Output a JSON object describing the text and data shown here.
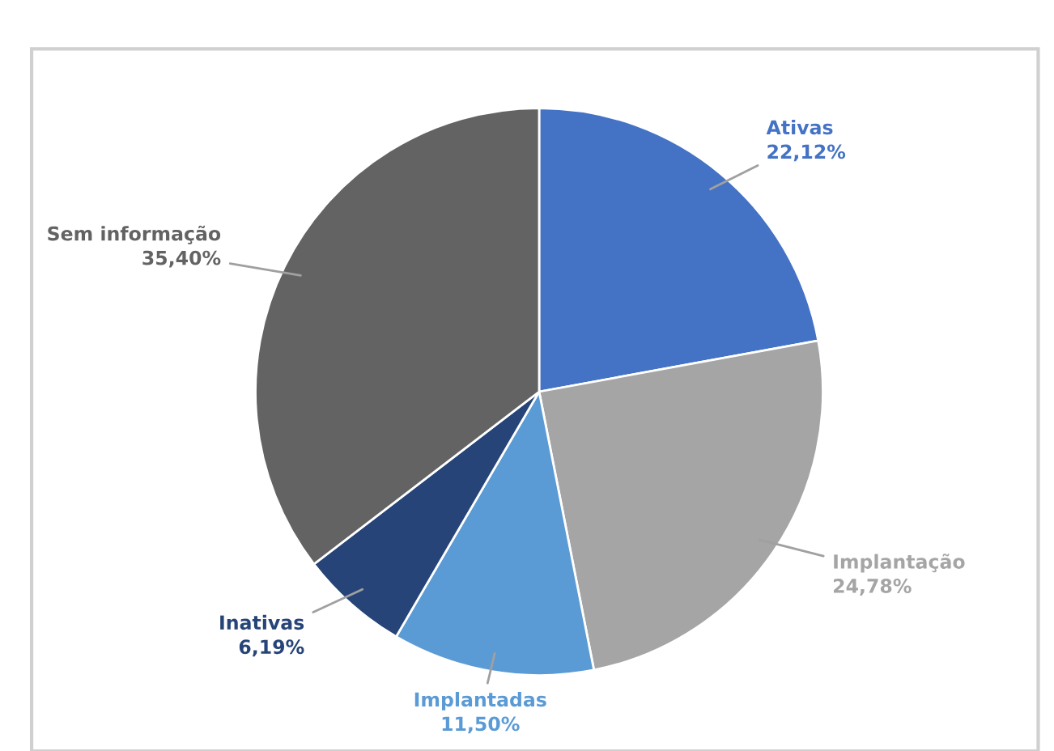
{
  "chart_data": {
    "type": "pie",
    "categories": [
      "Ativas",
      "Implantação",
      "Implantadas",
      "Inativas",
      "Sem informação"
    ],
    "values": [
      22.12,
      24.78,
      11.5,
      6.19,
      35.4
    ],
    "value_labels": [
      "22,12%",
      "24,78%",
      "11,50%",
      "6,19%",
      "35,40%"
    ],
    "colors": [
      "#4472c4",
      "#a5a5a5",
      "#5b9bd5",
      "#264478",
      "#636363"
    ],
    "legend": false
  }
}
